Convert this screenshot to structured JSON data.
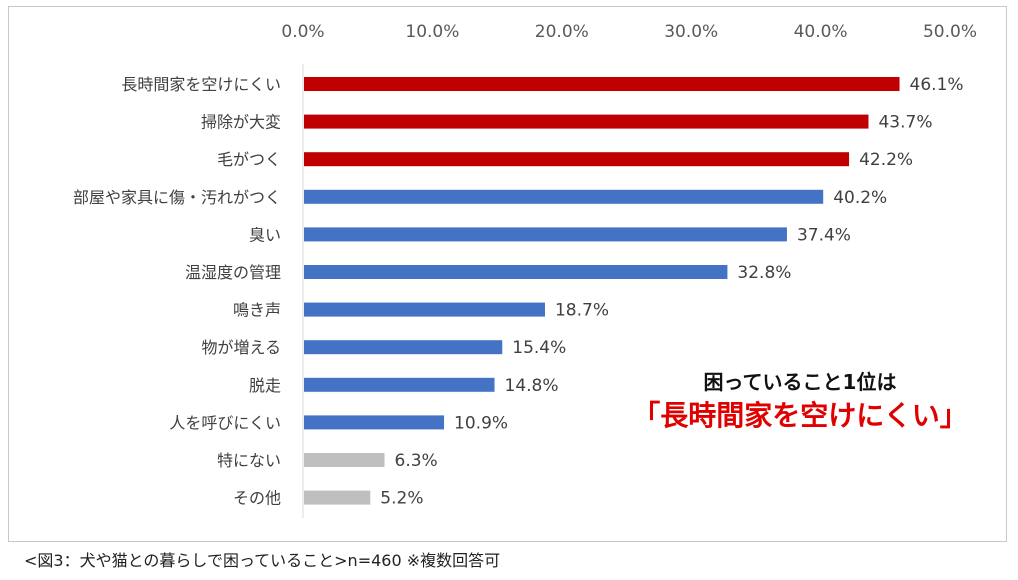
{
  "chart_data": {
    "type": "bar",
    "orientation": "horizontal",
    "categories": [
      "長時間家を空けにくい",
      "掃除が大変",
      "毛がつく",
      "部屋や家具に傷・汚れがつく",
      "臭い",
      "温湿度の管理",
      "鳴き声",
      "物が増える",
      "脱走",
      "人を呼びにくい",
      "特にない",
      "その他"
    ],
    "values": [
      46.1,
      43.7,
      42.2,
      40.2,
      37.4,
      32.8,
      18.7,
      15.4,
      14.8,
      10.9,
      6.3,
      5.2
    ],
    "value_labels": [
      "46.1%",
      "43.7%",
      "42.2%",
      "40.2%",
      "37.4%",
      "32.8%",
      "18.7%",
      "15.4%",
      "14.8%",
      "10.9%",
      "6.3%",
      "5.2%"
    ],
    "bar_colors": [
      "#c00000",
      "#c00000",
      "#c00000",
      "#4472c4",
      "#4472c4",
      "#4472c4",
      "#4472c4",
      "#4472c4",
      "#4472c4",
      "#4472c4",
      "#bfbfbf",
      "#bfbfbf"
    ],
    "xlim": [
      0,
      50
    ],
    "xticks": [
      "0.0%",
      "10.0%",
      "20.0%",
      "30.0%",
      "40.0%",
      "50.0%"
    ],
    "axis_position": "top",
    "grid": false
  },
  "annotation": {
    "line1": "困っていること1位は",
    "line2": "「長時間家を空けにくい」"
  },
  "caption": "<図3：犬や猫との暮らしで困っていること>n=460 ※複数回答可"
}
